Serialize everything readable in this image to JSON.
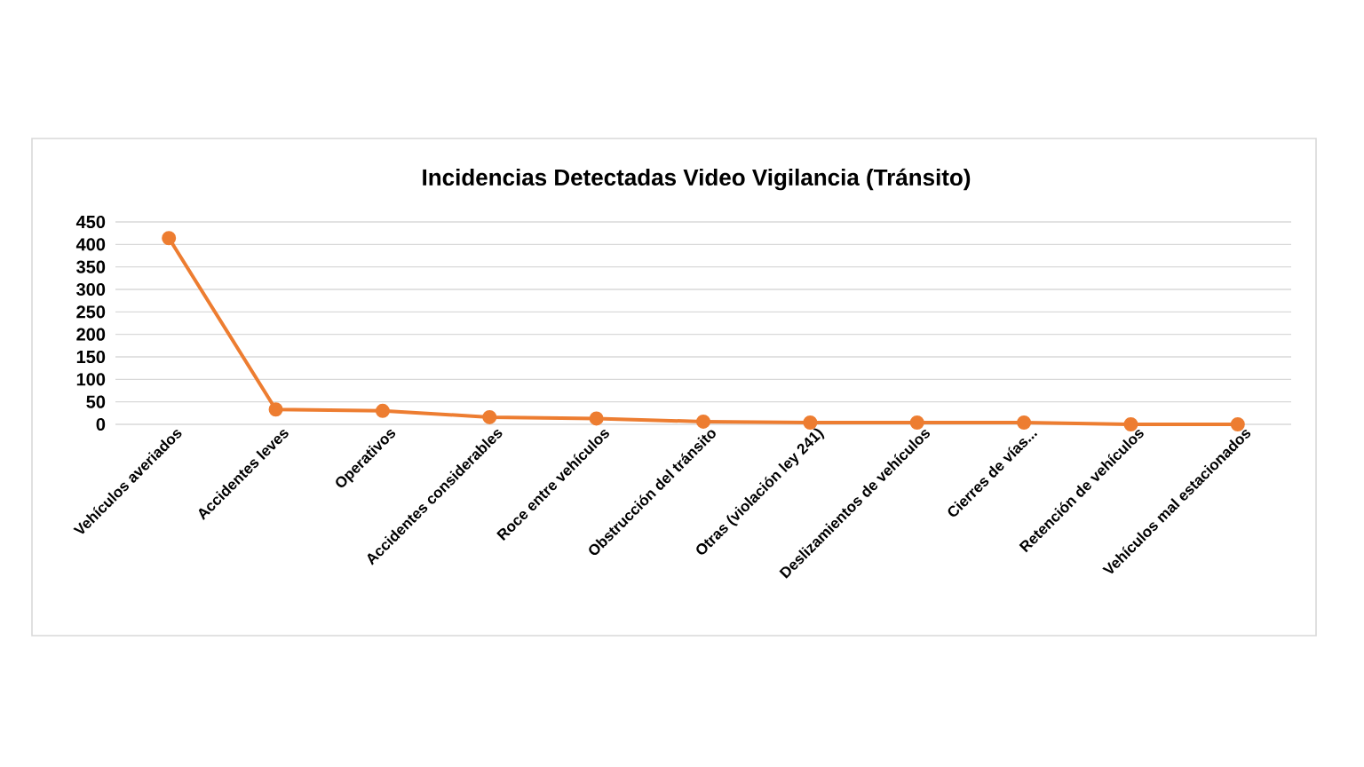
{
  "chart_data": {
    "type": "line",
    "title": "Incidencias Detectadas Video Vigilancia (Tránsito)",
    "categories": [
      "Vehículos averiados",
      "Accidentes leves",
      "Operativos",
      "Accidentes considerables",
      "Roce entre vehículos",
      "Obstrucción del tránsito",
      "Otras (violación ley 241)",
      "Deslizamientos de vehículos",
      "Cierres de vías...",
      "Retención de vehículos",
      "Vehículos mal estacionados"
    ],
    "values": [
      414,
      33,
      30,
      16,
      13,
      6,
      4,
      4,
      4,
      0,
      0
    ],
    "color": "#ed7d31",
    "ylim": [
      0,
      450
    ],
    "yticks": [
      0,
      50,
      100,
      150,
      200,
      250,
      300,
      350,
      400,
      450
    ],
    "grid": "y",
    "marker": "circle",
    "line_style": "solid"
  }
}
